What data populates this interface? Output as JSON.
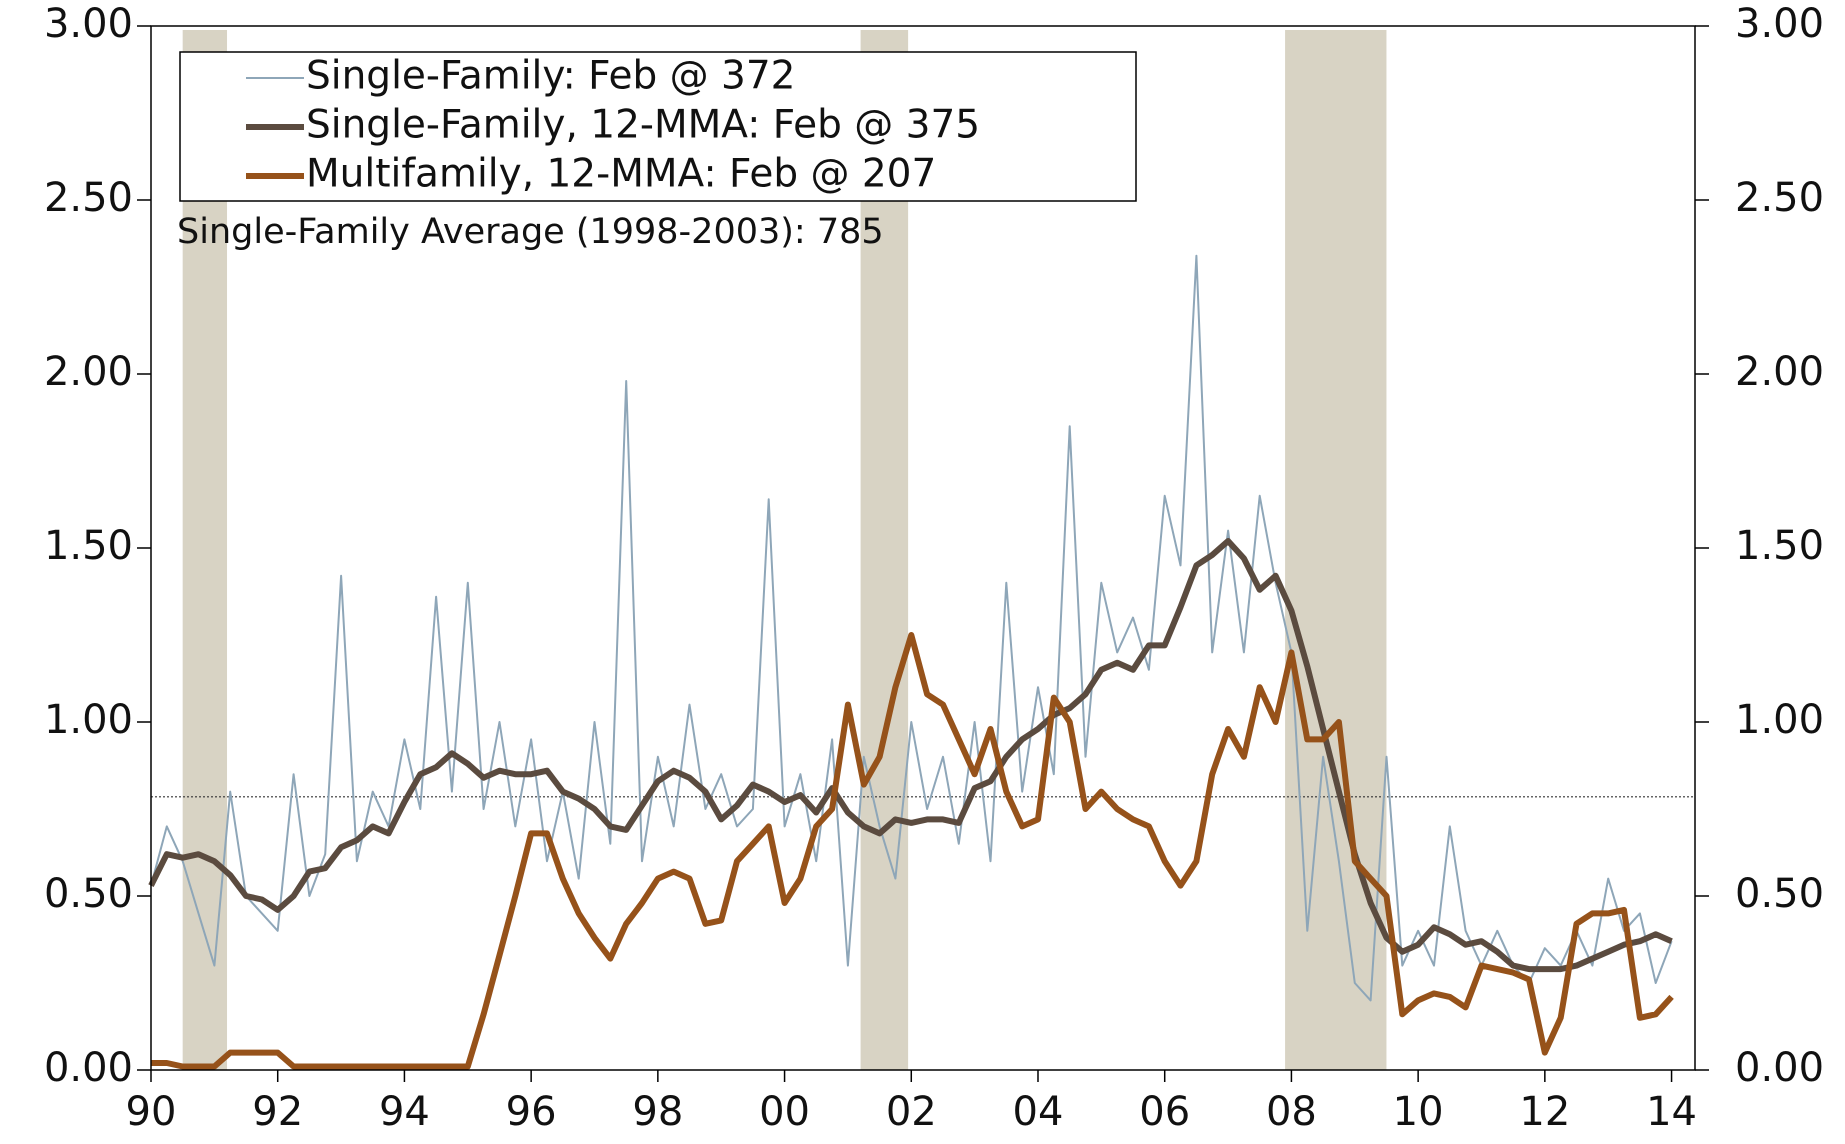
{
  "chart_data": {
    "type": "line",
    "annotation": "Single-Family Average (1998-2003): 785",
    "reference_line": 0.785,
    "recessions": [
      [
        1990.5,
        1991.2
      ],
      [
        2001.2,
        2001.95
      ],
      [
        2007.9,
        2009.5
      ]
    ],
    "recession_color": "#d8d3c4",
    "x": [
      1990,
      1990.25,
      1990.5,
      1990.75,
      1991,
      1991.25,
      1991.5,
      1991.75,
      1992,
      1992.25,
      1992.5,
      1992.75,
      1993,
      1993.25,
      1993.5,
      1993.75,
      1994,
      1994.25,
      1994.5,
      1994.75,
      1995,
      1995.25,
      1995.5,
      1995.75,
      1996,
      1996.25,
      1996.5,
      1996.75,
      1997,
      1997.25,
      1997.5,
      1997.75,
      1998,
      1998.25,
      1998.5,
      1998.75,
      1999,
      1999.25,
      1999.5,
      1999.75,
      2000,
      2000.25,
      2000.5,
      2000.75,
      2001,
      2001.25,
      2001.5,
      2001.75,
      2002,
      2002.25,
      2002.5,
      2002.75,
      2003,
      2003.25,
      2003.5,
      2003.75,
      2004,
      2004.25,
      2004.5,
      2004.75,
      2005,
      2005.25,
      2005.5,
      2005.75,
      2006,
      2006.25,
      2006.5,
      2006.75,
      2007,
      2007.25,
      2007.5,
      2007.75,
      2008,
      2008.25,
      2008.5,
      2008.75,
      2009,
      2009.25,
      2009.5,
      2009.75,
      2010,
      2010.25,
      2010.5,
      2010.75,
      2011,
      2011.25,
      2011.5,
      2011.75,
      2012,
      2012.25,
      2012.5,
      2012.75,
      2013,
      2013.25,
      2013.5,
      2013.75,
      2014
    ],
    "series": [
      {
        "name": "Single-Family: Feb @ 372",
        "color": "#8ea6b8",
        "width": 2,
        "values": [
          0.53,
          0.7,
          0.6,
          0.45,
          0.3,
          0.8,
          0.5,
          0.45,
          0.4,
          0.85,
          0.5,
          0.62,
          1.42,
          0.6,
          0.8,
          0.7,
          0.95,
          0.75,
          1.36,
          0.8,
          1.4,
          0.75,
          1.0,
          0.7,
          0.95,
          0.6,
          0.8,
          0.55,
          1.0,
          0.65,
          1.98,
          0.6,
          0.9,
          0.7,
          1.05,
          0.75,
          0.85,
          0.7,
          0.75,
          1.64,
          0.7,
          0.85,
          0.6,
          0.95,
          0.3,
          0.9,
          0.7,
          0.55,
          1.0,
          0.75,
          0.9,
          0.65,
          1.0,
          0.6,
          1.4,
          0.8,
          1.1,
          0.85,
          1.85,
          0.9,
          1.4,
          1.2,
          1.3,
          1.15,
          1.65,
          1.45,
          2.34,
          1.2,
          1.55,
          1.2,
          1.65,
          1.4,
          1.2,
          0.4,
          0.9,
          0.6,
          0.25,
          0.2,
          0.9,
          0.3,
          0.4,
          0.3,
          0.7,
          0.4,
          0.3,
          0.4,
          0.3,
          0.25,
          0.35,
          0.3,
          0.4,
          0.3,
          0.55,
          0.4,
          0.45,
          0.25,
          0.37
        ]
      },
      {
        "name": "Single-Family, 12-MMA: Feb @ 375",
        "color": "#5b4b3f",
        "width": 6,
        "values": [
          0.53,
          0.62,
          0.61,
          0.62,
          0.6,
          0.56,
          0.5,
          0.49,
          0.46,
          0.5,
          0.57,
          0.58,
          0.64,
          0.66,
          0.7,
          0.68,
          0.77,
          0.85,
          0.87,
          0.91,
          0.88,
          0.84,
          0.86,
          0.85,
          0.85,
          0.86,
          0.8,
          0.78,
          0.75,
          0.7,
          0.69,
          0.76,
          0.83,
          0.86,
          0.84,
          0.8,
          0.72,
          0.76,
          0.82,
          0.8,
          0.77,
          0.79,
          0.74,
          0.81,
          0.74,
          0.7,
          0.68,
          0.72,
          0.71,
          0.72,
          0.72,
          0.71,
          0.81,
          0.83,
          0.9,
          0.95,
          0.98,
          1.02,
          1.04,
          1.08,
          1.15,
          1.17,
          1.15,
          1.22,
          1.22,
          1.33,
          1.45,
          1.48,
          1.52,
          1.47,
          1.38,
          1.42,
          1.32,
          1.16,
          0.98,
          0.8,
          0.62,
          0.48,
          0.38,
          0.34,
          0.36,
          0.41,
          0.39,
          0.36,
          0.37,
          0.34,
          0.3,
          0.29,
          0.29,
          0.29,
          0.3,
          0.32,
          0.34,
          0.36,
          0.37,
          0.39,
          0.37
        ]
      },
      {
        "name": "Multifamily, 12-MMA: Feb @ 207",
        "color": "#96521a",
        "width": 6,
        "values": [
          0.02,
          0.02,
          0.01,
          0.01,
          0.01,
          0.05,
          0.05,
          0.05,
          0.05,
          0.01,
          0.01,
          0.01,
          0.01,
          0.01,
          0.01,
          0.01,
          0.01,
          0.01,
          0.01,
          0.01,
          0.01,
          0.16,
          0.33,
          0.5,
          0.68,
          0.68,
          0.55,
          0.45,
          0.38,
          0.32,
          0.42,
          0.48,
          0.55,
          0.57,
          0.55,
          0.42,
          0.43,
          0.6,
          0.65,
          0.7,
          0.48,
          0.55,
          0.7,
          0.75,
          1.05,
          0.82,
          0.9,
          1.1,
          1.25,
          1.08,
          1.05,
          0.95,
          0.85,
          0.98,
          0.8,
          0.7,
          0.72,
          1.07,
          1.0,
          0.75,
          0.8,
          0.75,
          0.72,
          0.7,
          0.6,
          0.53,
          0.6,
          0.85,
          0.98,
          0.9,
          1.1,
          1.0,
          1.2,
          0.95,
          0.95,
          1.0,
          0.6,
          0.55,
          0.5,
          0.16,
          0.2,
          0.22,
          0.21,
          0.18,
          0.3,
          0.29,
          0.28,
          0.26,
          0.05,
          0.15,
          0.42,
          0.45,
          0.45,
          0.46,
          0.15,
          0.16,
          0.21
        ]
      }
    ],
    "xlim": [
      1990,
      2014.37
    ],
    "xticks": [
      {
        "value": 1990,
        "label": "90"
      },
      {
        "value": 1992,
        "label": "92"
      },
      {
        "value": 1994,
        "label": "94"
      },
      {
        "value": 1996,
        "label": "96"
      },
      {
        "value": 1998,
        "label": "98"
      },
      {
        "value": 2000,
        "label": "00"
      },
      {
        "value": 2002,
        "label": "02"
      },
      {
        "value": 2004,
        "label": "04"
      },
      {
        "value": 2006,
        "label": "06"
      },
      {
        "value": 2008,
        "label": "08"
      },
      {
        "value": 2010,
        "label": "10"
      },
      {
        "value": 2012,
        "label": "12"
      },
      {
        "value": 2014,
        "label": "14"
      }
    ],
    "ylim": [
      0,
      3
    ],
    "yticks": [
      {
        "value": 0,
        "label": "0.00"
      },
      {
        "value": 0.5,
        "label": "0.50"
      },
      {
        "value": 1,
        "label": "1.00"
      },
      {
        "value": 1.5,
        "label": "1.50"
      },
      {
        "value": 2,
        "label": "2.00"
      },
      {
        "value": 2.5,
        "label": "2.50"
      },
      {
        "value": 3,
        "label": "3.00"
      }
    ]
  }
}
